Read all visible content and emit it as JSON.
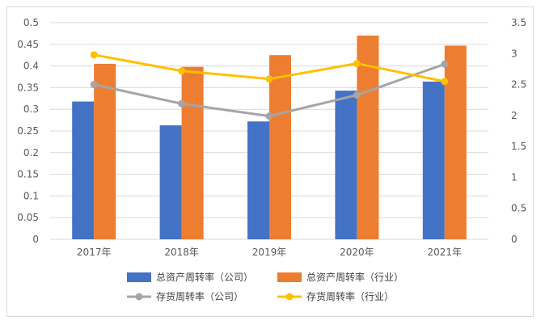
{
  "chart_data": {
    "type": "bar+line",
    "categories": [
      "2017年",
      "2018年",
      "2019年",
      "2020年",
      "2021年"
    ],
    "y_left": {
      "min": 0,
      "max": 0.5,
      "step": 0.05,
      "ticks": [
        "0",
        "0.05",
        "0.1",
        "0.15",
        "0.2",
        "0.25",
        "0.3",
        "0.35",
        "0.4",
        "0.45",
        "0.5"
      ]
    },
    "y_right": {
      "min": 0,
      "max": 3.5,
      "step": 0.5,
      "ticks": [
        "0",
        "0.5",
        "1",
        "1.5",
        "2",
        "2.5",
        "3",
        "3.5"
      ]
    },
    "bar_series": [
      {
        "name": "总资产周转率（公司）",
        "color": "#4472c4",
        "axis": "left",
        "values": [
          0.318,
          0.263,
          0.272,
          0.343,
          0.364
        ]
      },
      {
        "name": "总资产周转率（行业）",
        "color": "#ed7d31",
        "axis": "left",
        "values": [
          0.405,
          0.398,
          0.425,
          0.47,
          0.447
        ]
      }
    ],
    "line_series": [
      {
        "name": "存货周转率（公司）",
        "color": "#a5a5a5",
        "axis": "right",
        "values": [
          2.5,
          2.19,
          1.99,
          2.33,
          2.83
        ]
      },
      {
        "name": "存货周转率（行业）",
        "color": "#ffc000",
        "axis": "right",
        "values": [
          2.98,
          2.72,
          2.59,
          2.84,
          2.55
        ]
      }
    ],
    "grid": true,
    "legend_position": "bottom"
  }
}
